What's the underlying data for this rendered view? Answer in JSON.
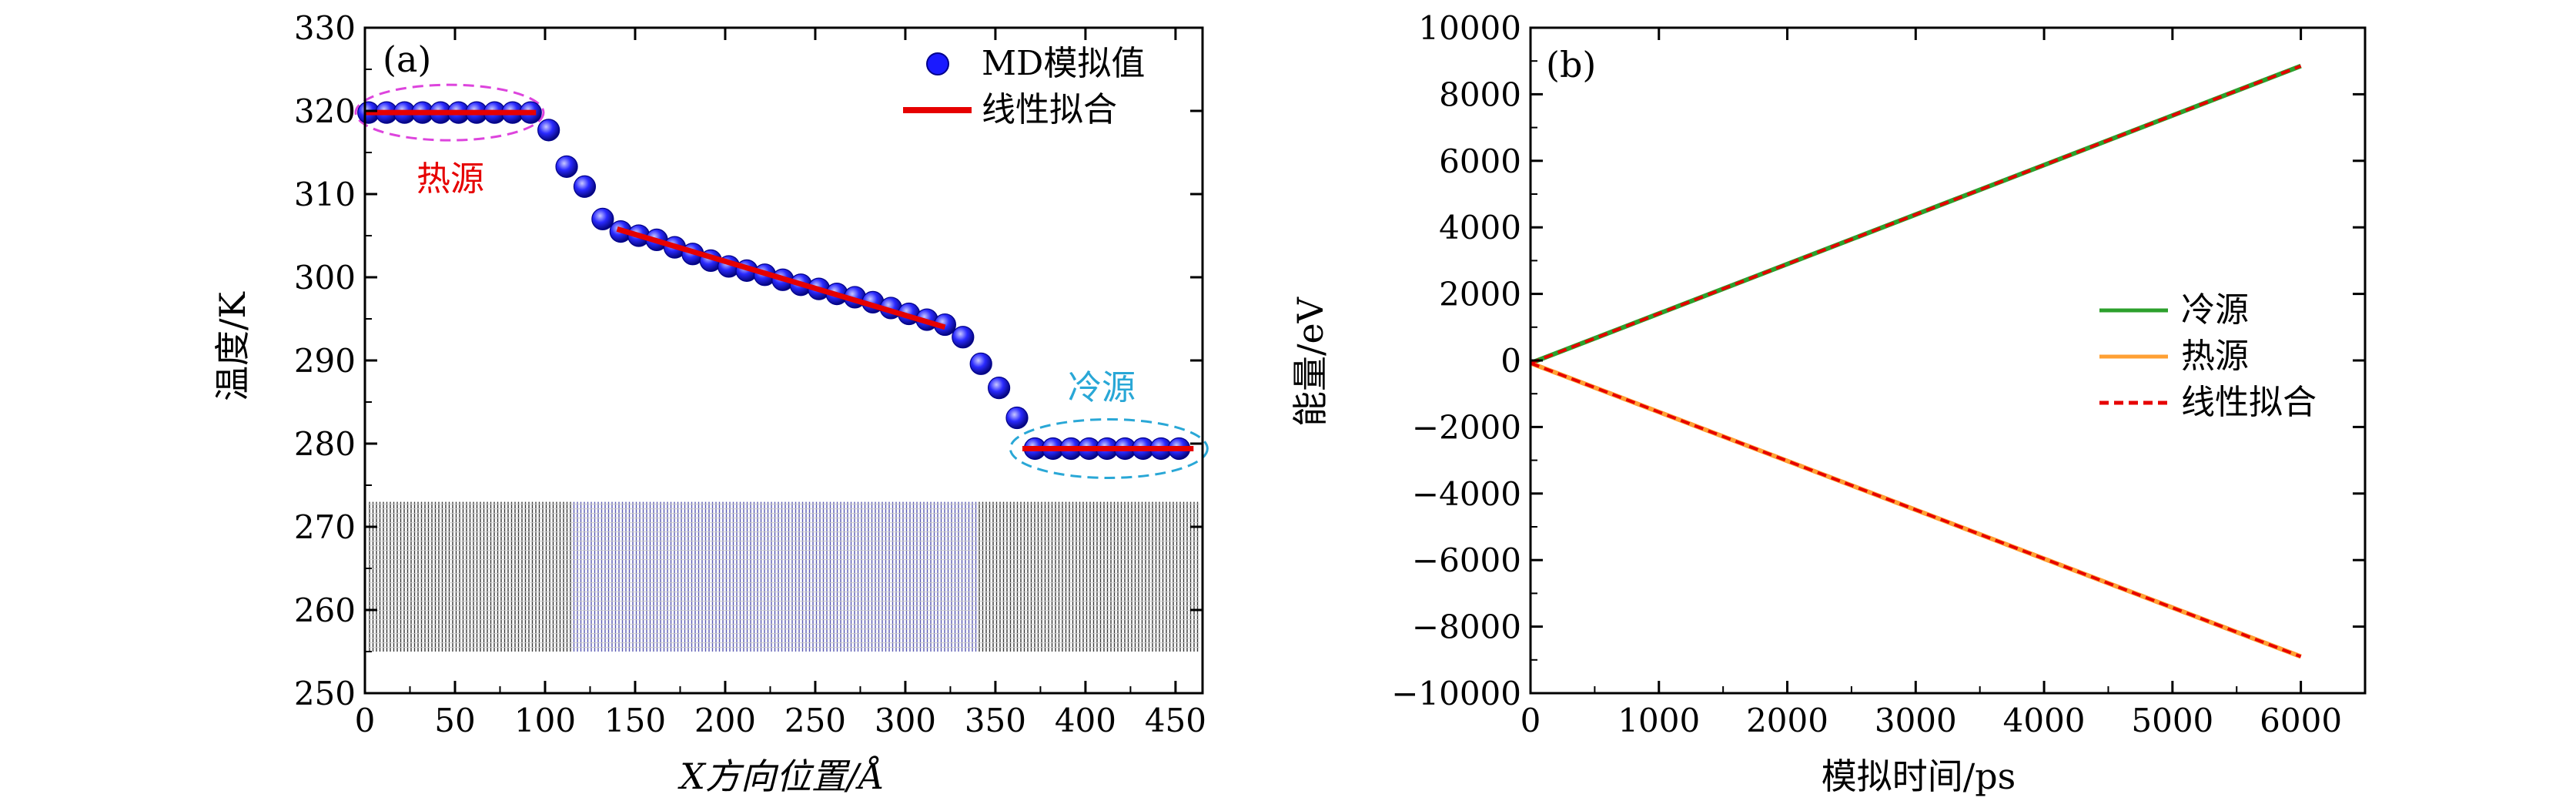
{
  "chart_data": [
    {
      "panel_label": "(a)",
      "type": "scatter",
      "xlabel": "X方向位置/Å",
      "ylabel": "温度/K",
      "xlim": [
        0,
        465
      ],
      "ylim": [
        250,
        330
      ],
      "x_ticks": [
        0,
        50,
        100,
        150,
        200,
        250,
        300,
        350,
        400,
        450
      ],
      "y_ticks": [
        250,
        260,
        270,
        280,
        290,
        300,
        310,
        320,
        330
      ],
      "legend": {
        "placement": "top-right",
        "entries": [
          "MD模拟值",
          "线性拟合"
        ]
      },
      "annotations": {
        "hot": "热源",
        "cold": "冷源"
      },
      "series": [
        {
          "name": "MD模拟值",
          "kind": "markers",
          "color": "#1a1aff",
          "x": [
            2,
            12,
            22,
            32,
            42,
            52,
            62,
            72,
            82,
            92,
            102,
            112,
            122,
            132,
            142,
            152,
            162,
            172,
            182,
            192,
            202,
            212,
            222,
            232,
            242,
            252,
            262,
            272,
            282,
            292,
            302,
            312,
            322,
            332,
            342,
            352,
            362,
            372,
            382,
            392,
            402,
            412,
            422,
            432,
            442,
            452
          ],
          "y": [
            319.8,
            319.8,
            319.8,
            319.8,
            319.8,
            319.8,
            319.8,
            319.8,
            319.8,
            319.8,
            317.7,
            313.3,
            310.9,
            307.0,
            305.5,
            305.0,
            304.5,
            303.6,
            302.8,
            302.0,
            301.3,
            300.8,
            300.3,
            299.7,
            299.1,
            298.6,
            298.0,
            297.6,
            297.0,
            296.3,
            295.6,
            294.9,
            294.3,
            292.8,
            289.6,
            286.7,
            283.1,
            279.4,
            279.4,
            279.4,
            279.4,
            279.4,
            279.4,
            279.4,
            279.4,
            279.4
          ]
        },
        {
          "name": "线性拟合",
          "kind": "line",
          "color": "#e60000",
          "segments": [
            {
              "x": [
                0,
                95
              ],
              "y": [
                319.8,
                319.8
              ]
            },
            {
              "x": [
                140,
                322
              ],
              "y": [
                305.8,
                294.0
              ]
            },
            {
              "x": [
                365,
                460
              ],
              "y": [
                279.4,
                279.4
              ]
            }
          ]
        }
      ],
      "colors": {
        "hot_ellipse": "#dd44dd",
        "hot_label": "#e60000",
        "cold_ellipse": "#29a7d6",
        "cold_label": "#29a7d6",
        "lattice": "#3a3a3a"
      }
    },
    {
      "panel_label": "(b)",
      "type": "line",
      "xlabel": "模拟时间/ps",
      "ylabel": "能量/eV",
      "xlim": [
        0,
        6500
      ],
      "ylim": [
        -10000,
        10000
      ],
      "x_ticks": [
        0,
        1000,
        2000,
        3000,
        4000,
        5000,
        6000
      ],
      "y_ticks": [
        -10000,
        -8000,
        -6000,
        -4000,
        -2000,
        0,
        2000,
        4000,
        6000,
        8000,
        10000
      ],
      "legend": {
        "placement": "center-right",
        "entries": [
          "冷源",
          "热源",
          "线性拟合"
        ]
      },
      "series": [
        {
          "name": "冷源",
          "color": "#2ca02c",
          "style": "solid",
          "x": [
            0,
            6000
          ],
          "y": [
            -80,
            8850
          ]
        },
        {
          "name": "热源",
          "color": "#ffa033",
          "style": "solid",
          "x": [
            0,
            6000
          ],
          "y": [
            -80,
            -8900
          ]
        },
        {
          "name": "线性拟合",
          "color": "#e60000",
          "style": "dashed",
          "x": [
            0,
            6000
          ],
          "y": [
            -80,
            8850
          ],
          "x2": [
            0,
            6000
          ],
          "y2": [
            -80,
            -8900
          ]
        }
      ]
    }
  ]
}
